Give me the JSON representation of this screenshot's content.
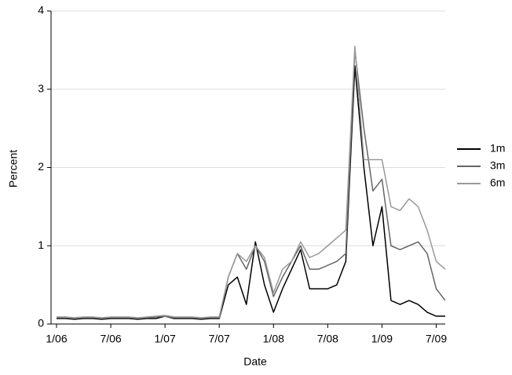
{
  "chart_data": {
    "type": "line",
    "x_label": "Date",
    "y_label": "Percent",
    "x": [
      "2006-01",
      "2006-02",
      "2006-03",
      "2006-04",
      "2006-05",
      "2006-06",
      "2006-07",
      "2006-08",
      "2006-09",
      "2006-10",
      "2006-11",
      "2006-12",
      "2007-01",
      "2007-02",
      "2007-03",
      "2007-04",
      "2007-05",
      "2007-06",
      "2007-07",
      "2007-08",
      "2007-09",
      "2007-10",
      "2007-11",
      "2007-12",
      "2008-01",
      "2008-02",
      "2008-03",
      "2008-04",
      "2008-05",
      "2008-06",
      "2008-07",
      "2008-08",
      "2008-09",
      "2008-10",
      "2008-11",
      "2008-12",
      "2009-01",
      "2009-02",
      "2009-03",
      "2009-04",
      "2009-05",
      "2009-06",
      "2009-07",
      "2009-08"
    ],
    "series": [
      {
        "name": "1m",
        "color": "#000000",
        "values": [
          0.07,
          0.07,
          0.06,
          0.07,
          0.07,
          0.06,
          0.07,
          0.07,
          0.07,
          0.06,
          0.07,
          0.07,
          0.1,
          0.07,
          0.07,
          0.07,
          0.06,
          0.07,
          0.07,
          0.5,
          0.6,
          0.25,
          1.05,
          0.5,
          0.15,
          0.45,
          0.7,
          0.95,
          0.45,
          0.45,
          0.45,
          0.5,
          0.8,
          3.3,
          2.0,
          1.0,
          1.5,
          0.3,
          0.25,
          0.3,
          0.25,
          0.15,
          0.1,
          0.1
        ]
      },
      {
        "name": "3m",
        "color": "#666666",
        "values": [
          0.08,
          0.08,
          0.07,
          0.08,
          0.08,
          0.07,
          0.08,
          0.08,
          0.08,
          0.07,
          0.08,
          0.09,
          0.1,
          0.08,
          0.08,
          0.08,
          0.07,
          0.08,
          0.08,
          0.6,
          0.9,
          0.7,
          1.0,
          0.8,
          0.35,
          0.6,
          0.8,
          1.0,
          0.7,
          0.7,
          0.75,
          0.8,
          0.9,
          3.5,
          2.5,
          1.7,
          1.85,
          1.0,
          0.95,
          1.0,
          1.05,
          0.9,
          0.45,
          0.3
        ]
      },
      {
        "name": "6m",
        "color": "#999999",
        "values": [
          0.09,
          0.09,
          0.08,
          0.09,
          0.09,
          0.08,
          0.09,
          0.09,
          0.09,
          0.08,
          0.09,
          0.1,
          0.11,
          0.09,
          0.09,
          0.09,
          0.08,
          0.09,
          0.09,
          0.6,
          0.9,
          0.8,
          1.0,
          0.85,
          0.4,
          0.7,
          0.8,
          1.05,
          0.85,
          0.9,
          1.0,
          1.1,
          1.2,
          3.55,
          2.1,
          2.1,
          2.1,
          1.5,
          1.45,
          1.6,
          1.5,
          1.2,
          0.8,
          0.7
        ]
      }
    ],
    "xlim": [
      "2006-01",
      "2009-08"
    ],
    "xticks": [
      {
        "value": "2006-01",
        "label": "1/06"
      },
      {
        "value": "2006-07",
        "label": "7/06"
      },
      {
        "value": "2007-01",
        "label": "1/07"
      },
      {
        "value": "2007-07",
        "label": "7/07"
      },
      {
        "value": "2008-01",
        "label": "1/08"
      },
      {
        "value": "2008-07",
        "label": "7/08"
      },
      {
        "value": "2009-01",
        "label": "1/09"
      },
      {
        "value": "2009-07",
        "label": "7/09"
      }
    ],
    "ylim": [
      0,
      4
    ],
    "yticks": [
      0,
      1,
      2,
      3,
      4
    ],
    "grid": true,
    "legend": "right"
  }
}
